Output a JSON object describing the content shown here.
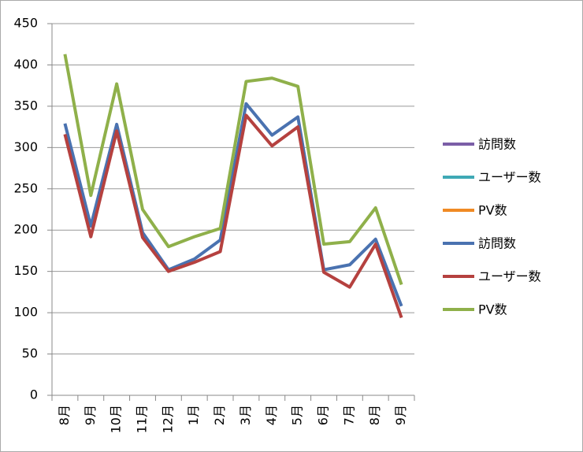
{
  "chart_data": {
    "type": "line",
    "categories": [
      "8月",
      "9月",
      "10月",
      "11月",
      "12月",
      "1月",
      "2月",
      "3月",
      "4月",
      "5月",
      "6月",
      "7月",
      "8月",
      "9月"
    ],
    "series": [
      {
        "name": "訪問数",
        "color": "#7b5ea7",
        "values": [
          null,
          null,
          null,
          null,
          null,
          null,
          null,
          null,
          null,
          null,
          null,
          null,
          null,
          null
        ]
      },
      {
        "name": "ユーザー数",
        "color": "#3fa9b5",
        "values": [
          null,
          null,
          null,
          null,
          null,
          null,
          null,
          null,
          null,
          null,
          null,
          null,
          null,
          null
        ]
      },
      {
        "name": "PV数",
        "color": "#f08a24",
        "values": [
          null,
          null,
          null,
          null,
          null,
          null,
          null,
          null,
          null,
          null,
          null,
          null,
          null,
          null
        ]
      },
      {
        "name": "訪問数",
        "color": "#4a72b0",
        "values": [
          329,
          205,
          328,
          197,
          152,
          165,
          188,
          353,
          315,
          337,
          152,
          158,
          189,
          108
        ]
      },
      {
        "name": "ユーザー数",
        "color": "#b5413f",
        "values": [
          316,
          192,
          320,
          191,
          150,
          161,
          174,
          339,
          302,
          325,
          149,
          131,
          183,
          94
        ]
      },
      {
        "name": "PV数",
        "color": "#8fb04a",
        "values": [
          413,
          242,
          377,
          225,
          180,
          192,
          202,
          380,
          384,
          374,
          183,
          186,
          227,
          134
        ]
      }
    ],
    "ylim": [
      0,
      450
    ],
    "yticks": [
      0,
      50,
      100,
      150,
      200,
      250,
      300,
      350,
      400,
      450
    ],
    "grid": true,
    "legend": "right"
  }
}
